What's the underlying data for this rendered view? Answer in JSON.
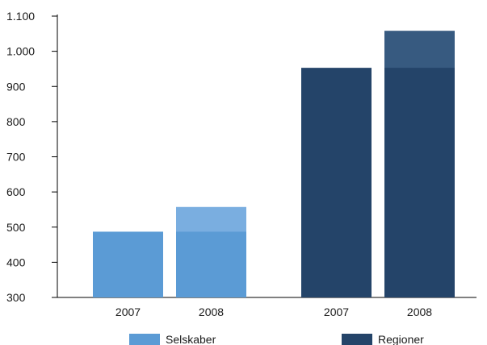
{
  "chart_data": {
    "type": "bar",
    "title": "",
    "xlabel": "",
    "ylabel": "",
    "ylim": [
      300,
      1100
    ],
    "yticks": [
      300,
      400,
      500,
      600,
      700,
      800,
      900,
      1000,
      1100
    ],
    "ytick_labels": [
      "300",
      "400",
      "500",
      "600",
      "700",
      "800",
      "900",
      "1.000",
      "1.100"
    ],
    "grid": false,
    "legend_position": "bottom",
    "groups": [
      {
        "name": "Selskaber",
        "color": "#5b9bd5",
        "highlight_color": "#7aaee0",
        "bars": [
          {
            "category": "2007",
            "value": 487
          },
          {
            "category": "2008",
            "value": 557,
            "base_highlight_from": 487
          }
        ]
      },
      {
        "name": "Regioner",
        "color": "#244469",
        "highlight_color": "#375a80",
        "bars": [
          {
            "category": "2007",
            "value": 953
          },
          {
            "category": "2008",
            "value": 1058,
            "base_highlight_from": 953
          }
        ]
      }
    ]
  }
}
